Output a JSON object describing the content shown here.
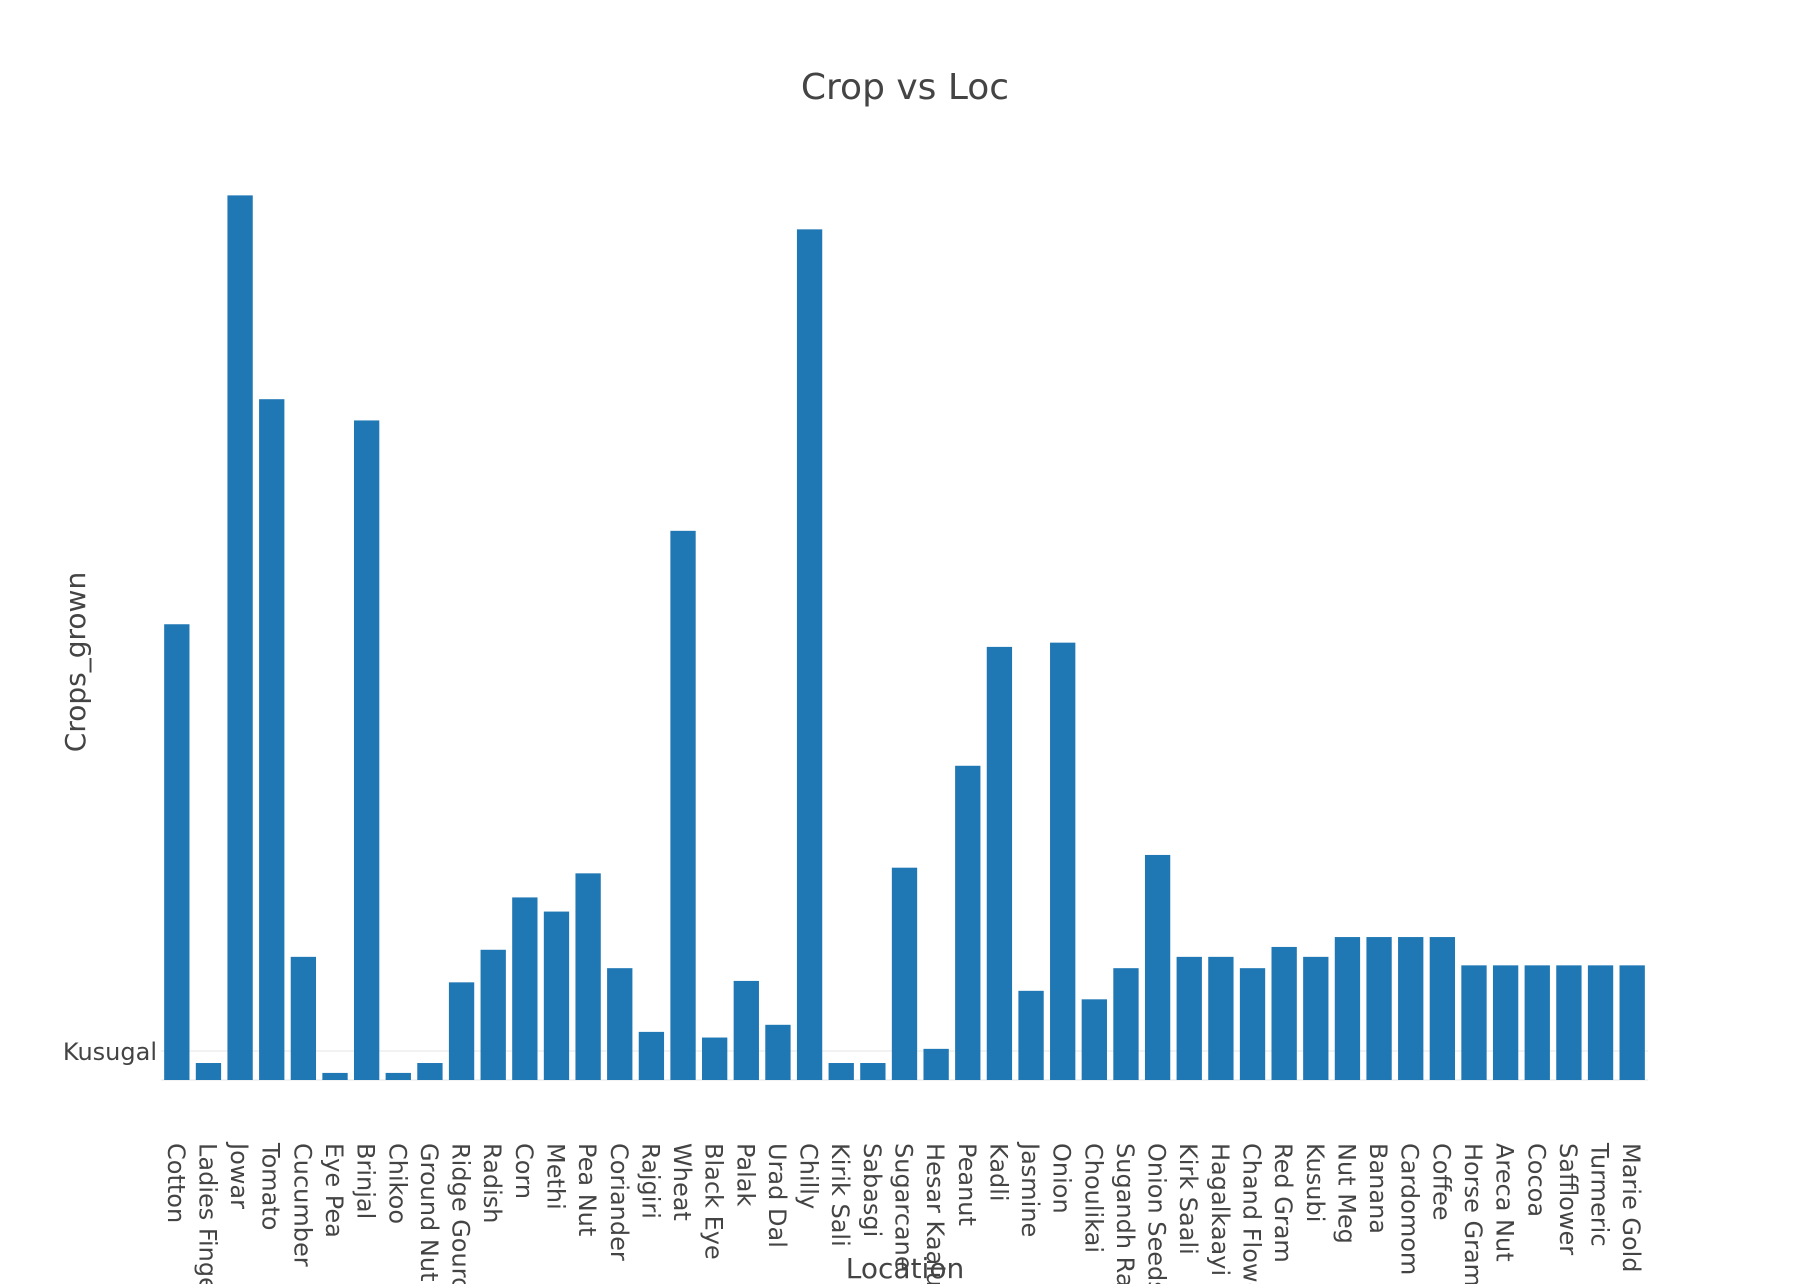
{
  "chart_data": {
    "type": "bar",
    "title": "Crop vs Loc",
    "xlabel": "Location",
    "ylabel": "Crops_grown",
    "y_tick_labels": [
      "Kusugal"
    ],
    "grid": true,
    "legend": "none",
    "bar_color": "#1f77b4",
    "categories": [
      "Cotton",
      "Ladies Finger",
      "Jowar",
      "Tomato",
      "Cucumber",
      "Eye Pea",
      "Brinjal",
      "Chikoo",
      "Ground Nut",
      "Ridge Gourd",
      "Radish",
      "Corn",
      "Methi",
      "Pea Nut",
      "Coriander",
      "Rajgiri",
      "Wheat",
      "Black Eye",
      "Palak",
      "Urad Dal",
      "Chilly",
      "Kirik Sali",
      "Sabasgi",
      "Sugarcane",
      "Hesar Kaalu",
      "Peanut",
      "Kadli",
      "Jasmine",
      "Onion",
      "Choulikai",
      "Sugandh Raja",
      "Onion Seeds",
      "Kirk Saali",
      "Hagalkaayi",
      "Chand Flower",
      "Red Gram",
      "Kusubi",
      "Nut Meg",
      "Banana",
      "Cardomom",
      "Coffee",
      "Horse Gram",
      "Areca Nut",
      "Cocoa",
      "Safflower",
      "Turmeric",
      "Marie Gold"
    ],
    "values": [
      322,
      12,
      625,
      481,
      87,
      5,
      466,
      5,
      12,
      69,
      92,
      129,
      119,
      146,
      79,
      34,
      388,
      30,
      70,
      39,
      601,
      12,
      12,
      150,
      22,
      222,
      306,
      63,
      309,
      57,
      79,
      159,
      87,
      87,
      79,
      94,
      87,
      101,
      101,
      101,
      101,
      81,
      81,
      81,
      81,
      81,
      81
    ],
    "ylim": [
      0,
      650
    ]
  }
}
